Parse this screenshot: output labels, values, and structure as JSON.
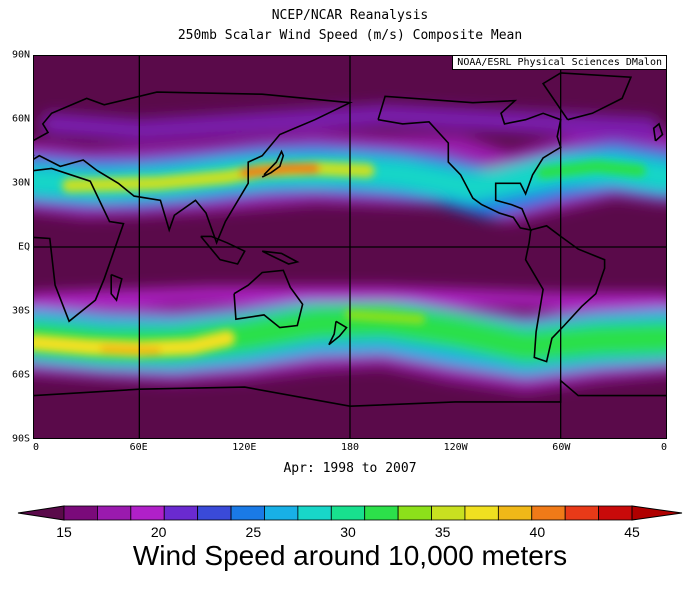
{
  "header": {
    "title": "NCEP/NCAR Reanalysis",
    "subtitle": "250mb Scalar Wind Speed (m/s) Composite Mean"
  },
  "credit": "NOAA/ESRL Physical Sciences DMalon",
  "period": "Apr: 1998 to 2007",
  "caption": "Wind Speed around 10,000 meters",
  "map": {
    "lat_labels": [
      "90N",
      "60N",
      "30N",
      "EQ",
      "30S",
      "60S",
      "90S"
    ],
    "lon_labels": [
      "0",
      "60E",
      "120E",
      "180",
      "120W",
      "60W",
      "0"
    ],
    "grid_lines_lon": [
      60,
      180,
      300
    ],
    "grid_lines_lat": [
      0
    ]
  },
  "colorbar": {
    "labels": [
      "15",
      "20",
      "25",
      "30",
      "35",
      "40",
      "45"
    ],
    "colors": [
      "#7a0a7a",
      "#9a1aae",
      "#b020c8",
      "#6a2ad0",
      "#3a4ad8",
      "#1a7ae6",
      "#18b0e6",
      "#18d6c8",
      "#18e08e",
      "#2ce04a",
      "#8ce01a",
      "#c8e020",
      "#f0e020",
      "#f0b818",
      "#f07a18",
      "#e83a18",
      "#c80a0a"
    ],
    "low_color": "#5a0a4a",
    "high_color": "#b00000"
  }
}
